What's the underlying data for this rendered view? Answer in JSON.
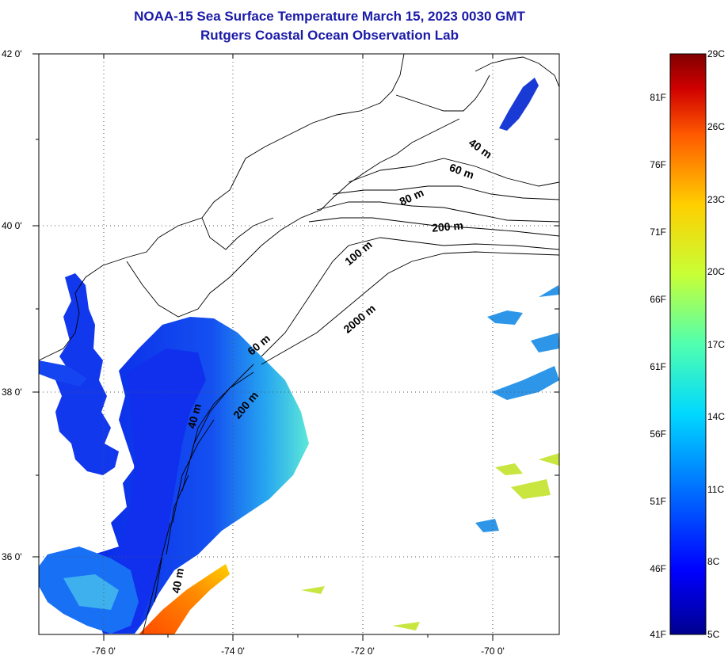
{
  "title": "NOAA-15 Sea Surface Temperature March 15, 2023 0030 GMT",
  "subtitle": "Rutgers Coastal Ocean Observation Lab",
  "map": {
    "lat_labels": [
      "42 0'",
      "40 0'",
      "38 0'",
      "36 0'"
    ],
    "lon_labels": [
      "-76 0'",
      "-74 0'",
      "-72 0'",
      "-70 0'"
    ],
    "lat_range": [
      35.0,
      42.0
    ],
    "lon_range": [
      -77.0,
      -69.0
    ],
    "grid": true,
    "isobath_labels": [
      "40 m",
      "60 m",
      "80 m",
      "200 m",
      "100 m",
      "2000 m",
      "60 m",
      "200 m",
      "40 m",
      "40 m"
    ]
  },
  "colorbar": {
    "left_labels": [
      "81F",
      "76F",
      "71F",
      "66F",
      "61F",
      "56F",
      "51F",
      "46F",
      "41F"
    ],
    "right_labels": [
      "29C",
      "26C",
      "23C",
      "20C",
      "17C",
      "14C",
      "11C",
      "8C",
      "5C"
    ],
    "colors": [
      "#00008f",
      "#0000ff",
      "#0070ff",
      "#00d8ff",
      "#50ffaf",
      "#c8ff36",
      "#ffcf00",
      "#ff5a00",
      "#d00000",
      "#800000"
    ]
  }
}
